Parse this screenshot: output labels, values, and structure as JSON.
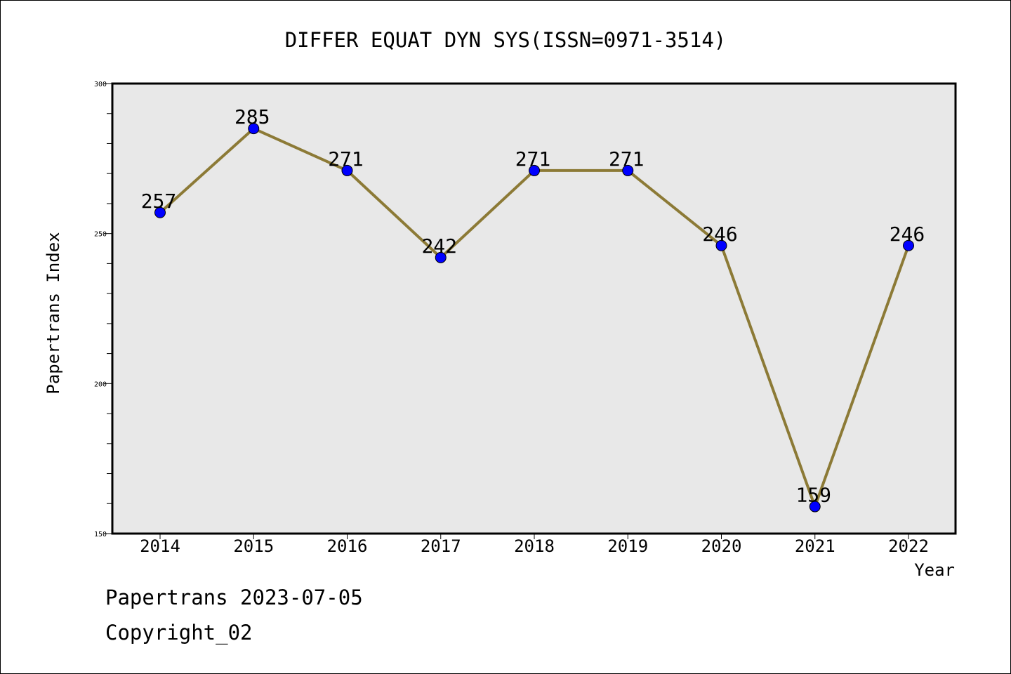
{
  "chart_data": {
    "type": "line",
    "title": "DIFFER EQUAT DYN SYS(ISSN=0971-3514)",
    "xlabel": "Year",
    "ylabel": "Papertrans Index",
    "categories": [
      "2014",
      "2015",
      "2016",
      "2017",
      "2018",
      "2019",
      "2020",
      "2021",
      "2022"
    ],
    "values": [
      257,
      285,
      271,
      242,
      271,
      271,
      246,
      159,
      246
    ],
    "data_labels": [
      "257",
      "285",
      "271",
      "242",
      "271",
      "271",
      "246",
      "159",
      "246"
    ],
    "ylim": [
      150,
      300
    ],
    "yticks": [
      150,
      200,
      250,
      300
    ],
    "ytick_labels": [
      "150",
      "200",
      "250",
      "300"
    ],
    "grid": false,
    "colors": {
      "line": "#8c7a36",
      "marker": "#0000ff",
      "plot_background": "#e8e8e8"
    }
  },
  "footer": {
    "line1": "Papertrans 2023-07-05",
    "line2": "Copyright_02"
  }
}
